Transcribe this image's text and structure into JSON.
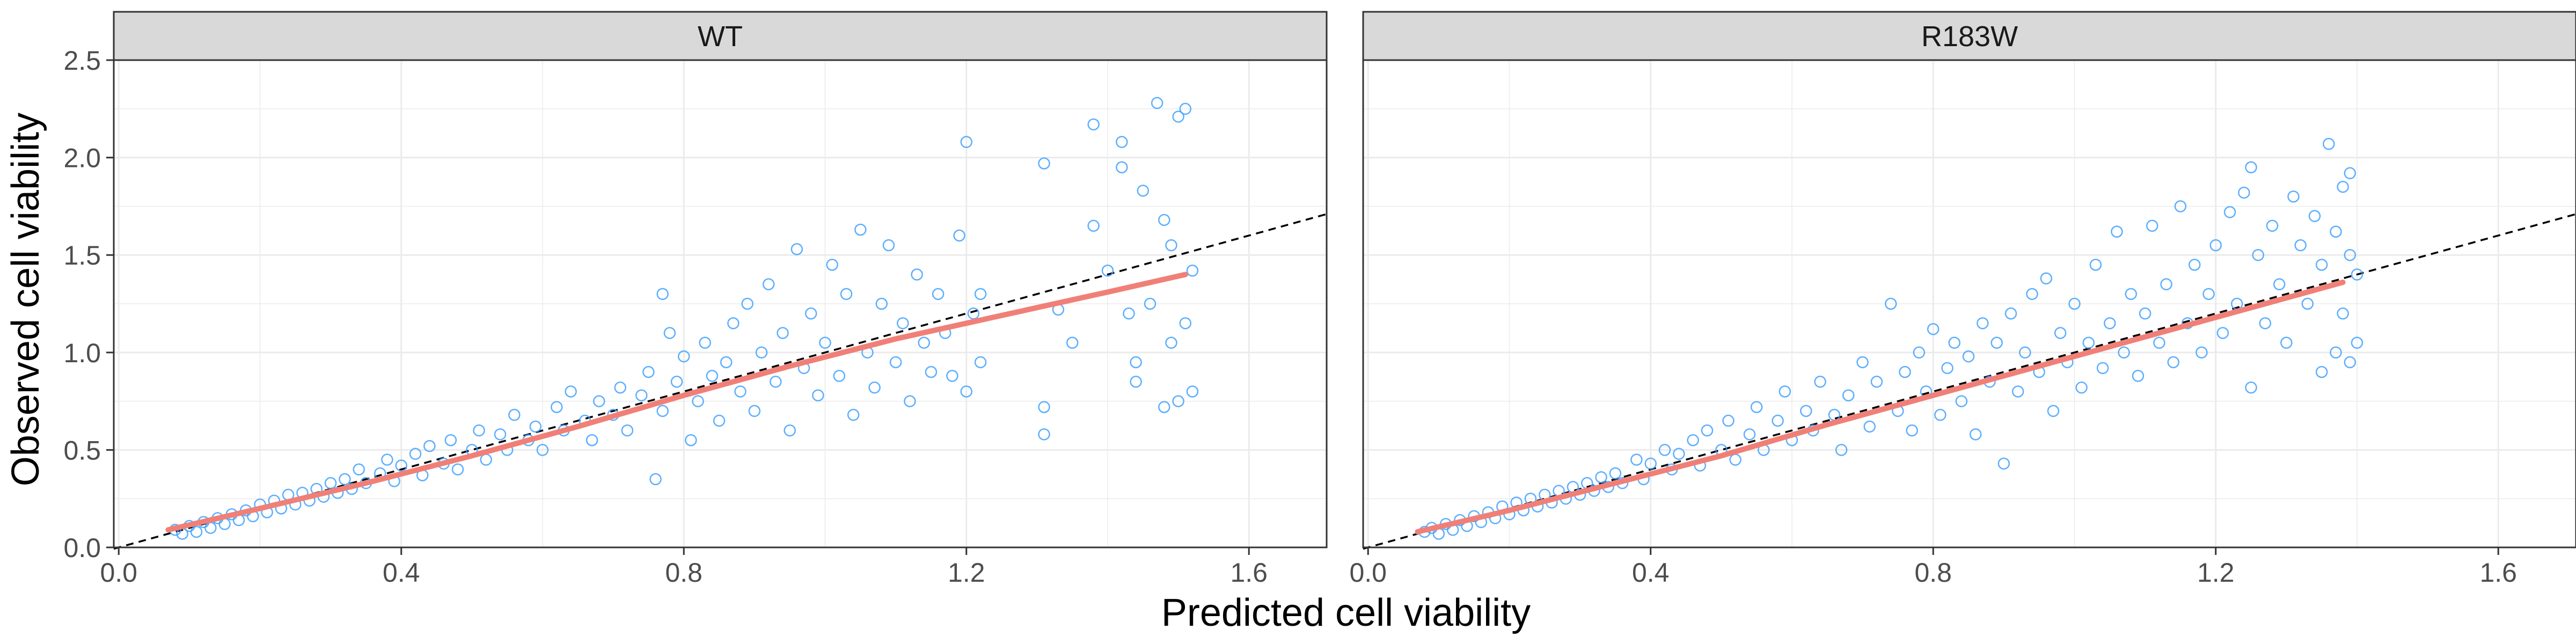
{
  "chart_data": {
    "type": "scatter",
    "xlabel": "Predicted cell viability",
    "ylabel": "Observed cell viability",
    "xlim": [
      -0.007,
      1.71
    ],
    "ylim": [
      -0.0,
      2.5
    ],
    "xticks": [
      0.0,
      0.4,
      0.8,
      1.2,
      1.6
    ],
    "xtick_labels": [
      "0.0",
      "0.4",
      "0.8",
      "1.2",
      "1.6"
    ],
    "yticks": [
      0.0,
      0.5,
      1.0,
      1.5,
      2.0,
      2.5
    ],
    "ytick_labels": [
      "0.0",
      "0.5",
      "1.0",
      "1.5",
      "2.0",
      "2.5"
    ],
    "grid": true,
    "reference_line": {
      "slope": 1,
      "intercept": 0,
      "style": "dashed",
      "color": "#000000"
    },
    "point_color": "#3fa1ff",
    "smooth_color": "#f08077",
    "panels": [
      {
        "label": "WT",
        "smooth": {
          "x": [
            0.07,
            0.2,
            0.35,
            0.5,
            0.65,
            0.8,
            0.95,
            1.1,
            1.25,
            1.4,
            1.51
          ],
          "y": [
            0.09,
            0.2,
            0.33,
            0.47,
            0.62,
            0.78,
            0.93,
            1.07,
            1.19,
            1.31,
            1.4
          ]
        },
        "points": [
          [
            0.08,
            0.09
          ],
          [
            0.09,
            0.07
          ],
          [
            0.1,
            0.11
          ],
          [
            0.11,
            0.08
          ],
          [
            0.12,
            0.13
          ],
          [
            0.13,
            0.1
          ],
          [
            0.14,
            0.15
          ],
          [
            0.15,
            0.12
          ],
          [
            0.16,
            0.17
          ],
          [
            0.17,
            0.14
          ],
          [
            0.18,
            0.19
          ],
          [
            0.19,
            0.16
          ],
          [
            0.2,
            0.22
          ],
          [
            0.21,
            0.18
          ],
          [
            0.22,
            0.24
          ],
          [
            0.23,
            0.2
          ],
          [
            0.24,
            0.27
          ],
          [
            0.25,
            0.22
          ],
          [
            0.26,
            0.28
          ],
          [
            0.27,
            0.24
          ],
          [
            0.28,
            0.3
          ],
          [
            0.29,
            0.26
          ],
          [
            0.3,
            0.33
          ],
          [
            0.31,
            0.28
          ],
          [
            0.32,
            0.35
          ],
          [
            0.33,
            0.3
          ],
          [
            0.34,
            0.4
          ],
          [
            0.35,
            0.33
          ],
          [
            0.37,
            0.38
          ],
          [
            0.38,
            0.45
          ],
          [
            0.39,
            0.34
          ],
          [
            0.4,
            0.42
          ],
          [
            0.42,
            0.48
          ],
          [
            0.43,
            0.37
          ],
          [
            0.44,
            0.52
          ],
          [
            0.46,
            0.43
          ],
          [
            0.47,
            0.55
          ],
          [
            0.48,
            0.4
          ],
          [
            0.5,
            0.5
          ],
          [
            0.51,
            0.6
          ],
          [
            0.52,
            0.45
          ],
          [
            0.54,
            0.58
          ],
          [
            0.55,
            0.5
          ],
          [
            0.56,
            0.68
          ],
          [
            0.58,
            0.55
          ],
          [
            0.59,
            0.62
          ],
          [
            0.6,
            0.5
          ],
          [
            0.62,
            0.72
          ],
          [
            0.63,
            0.6
          ],
          [
            0.64,
            0.8
          ],
          [
            0.66,
            0.65
          ],
          [
            0.67,
            0.55
          ],
          [
            0.68,
            0.75
          ],
          [
            0.7,
            0.68
          ],
          [
            0.71,
            0.82
          ],
          [
            0.72,
            0.6
          ],
          [
            0.74,
            0.78
          ],
          [
            0.75,
            0.9
          ],
          [
            0.76,
            0.35
          ],
          [
            0.77,
            0.7
          ],
          [
            0.77,
            1.3
          ],
          [
            0.78,
            1.1
          ],
          [
            0.79,
            0.85
          ],
          [
            0.8,
            0.98
          ],
          [
            0.81,
            0.55
          ],
          [
            0.82,
            0.75
          ],
          [
            0.83,
            1.05
          ],
          [
            0.84,
            0.88
          ],
          [
            0.85,
            0.65
          ],
          [
            0.86,
            0.95
          ],
          [
            0.87,
            1.15
          ],
          [
            0.88,
            0.8
          ],
          [
            0.89,
            1.25
          ],
          [
            0.9,
            0.7
          ],
          [
            0.91,
            1.0
          ],
          [
            0.92,
            1.35
          ],
          [
            0.93,
            0.85
          ],
          [
            0.94,
            1.1
          ],
          [
            0.95,
            0.6
          ],
          [
            0.96,
            1.53
          ],
          [
            0.97,
            0.92
          ],
          [
            0.98,
            1.2
          ],
          [
            0.99,
            0.78
          ],
          [
            1.0,
            1.05
          ],
          [
            1.01,
            1.45
          ],
          [
            1.02,
            0.88
          ],
          [
            1.03,
            1.3
          ],
          [
            1.04,
            0.68
          ],
          [
            1.05,
            1.63
          ],
          [
            1.06,
            1.0
          ],
          [
            1.07,
            0.82
          ],
          [
            1.08,
            1.25
          ],
          [
            1.09,
            1.55
          ],
          [
            1.1,
            0.95
          ],
          [
            1.11,
            1.15
          ],
          [
            1.12,
            0.75
          ],
          [
            1.13,
            1.4
          ],
          [
            1.14,
            1.05
          ],
          [
            1.15,
            0.9
          ],
          [
            1.16,
            1.3
          ],
          [
            1.17,
            1.1
          ],
          [
            1.18,
            0.88
          ],
          [
            1.19,
            1.6
          ],
          [
            1.2,
            2.08
          ],
          [
            1.2,
            0.8
          ],
          [
            1.21,
            1.2
          ],
          [
            1.22,
            0.95
          ],
          [
            1.22,
            1.3
          ],
          [
            1.31,
            1.97
          ],
          [
            1.31,
            0.72
          ],
          [
            1.31,
            0.58
          ],
          [
            1.33,
            1.22
          ],
          [
            1.35,
            1.05
          ],
          [
            1.38,
            2.17
          ],
          [
            1.38,
            1.65
          ],
          [
            1.4,
            1.42
          ],
          [
            1.42,
            2.08
          ],
          [
            1.42,
            1.95
          ],
          [
            1.43,
            1.2
          ],
          [
            1.44,
            0.95
          ],
          [
            1.44,
            0.85
          ],
          [
            1.45,
            1.83
          ],
          [
            1.46,
            1.25
          ],
          [
            1.47,
            2.28
          ],
          [
            1.48,
            1.68
          ],
          [
            1.48,
            0.72
          ],
          [
            1.49,
            1.05
          ],
          [
            1.49,
            1.55
          ],
          [
            1.5,
            2.21
          ],
          [
            1.5,
            0.75
          ],
          [
            1.51,
            2.25
          ],
          [
            1.51,
            1.15
          ],
          [
            1.52,
            1.42
          ],
          [
            1.52,
            0.8
          ]
        ]
      },
      {
        "label": "R183W",
        "smooth": {
          "x": [
            0.07,
            0.2,
            0.35,
            0.5,
            0.65,
            0.8,
            0.95,
            1.1,
            1.25,
            1.38
          ],
          "y": [
            0.08,
            0.19,
            0.33,
            0.47,
            0.63,
            0.78,
            0.93,
            1.08,
            1.23,
            1.36
          ]
        },
        "points": [
          [
            0.08,
            0.08
          ],
          [
            0.09,
            0.1
          ],
          [
            0.1,
            0.07
          ],
          [
            0.11,
            0.12
          ],
          [
            0.12,
            0.09
          ],
          [
            0.13,
            0.14
          ],
          [
            0.14,
            0.11
          ],
          [
            0.15,
            0.16
          ],
          [
            0.16,
            0.13
          ],
          [
            0.17,
            0.18
          ],
          [
            0.18,
            0.15
          ],
          [
            0.19,
            0.21
          ],
          [
            0.2,
            0.17
          ],
          [
            0.21,
            0.23
          ],
          [
            0.22,
            0.19
          ],
          [
            0.23,
            0.25
          ],
          [
            0.24,
            0.21
          ],
          [
            0.25,
            0.27
          ],
          [
            0.26,
            0.23
          ],
          [
            0.27,
            0.29
          ],
          [
            0.28,
            0.25
          ],
          [
            0.29,
            0.31
          ],
          [
            0.3,
            0.27
          ],
          [
            0.31,
            0.33
          ],
          [
            0.32,
            0.29
          ],
          [
            0.33,
            0.36
          ],
          [
            0.34,
            0.31
          ],
          [
            0.35,
            0.38
          ],
          [
            0.36,
            0.33
          ],
          [
            0.38,
            0.45
          ],
          [
            0.39,
            0.35
          ],
          [
            0.4,
            0.43
          ],
          [
            0.42,
            0.5
          ],
          [
            0.43,
            0.4
          ],
          [
            0.44,
            0.48
          ],
          [
            0.46,
            0.55
          ],
          [
            0.47,
            0.42
          ],
          [
            0.48,
            0.6
          ],
          [
            0.5,
            0.5
          ],
          [
            0.51,
            0.65
          ],
          [
            0.52,
            0.45
          ],
          [
            0.54,
            0.58
          ],
          [
            0.55,
            0.72
          ],
          [
            0.56,
            0.5
          ],
          [
            0.58,
            0.65
          ],
          [
            0.59,
            0.8
          ],
          [
            0.6,
            0.55
          ],
          [
            0.62,
            0.7
          ],
          [
            0.63,
            0.6
          ],
          [
            0.64,
            0.85
          ],
          [
            0.66,
            0.68
          ],
          [
            0.67,
            0.5
          ],
          [
            0.68,
            0.78
          ],
          [
            0.7,
            0.95
          ],
          [
            0.71,
            0.62
          ],
          [
            0.72,
            0.85
          ],
          [
            0.74,
            1.25
          ],
          [
            0.75,
            0.7
          ],
          [
            0.76,
            0.9
          ],
          [
            0.77,
            0.6
          ],
          [
            0.78,
            1.0
          ],
          [
            0.79,
            0.8
          ],
          [
            0.8,
            1.12
          ],
          [
            0.81,
            0.68
          ],
          [
            0.82,
            0.92
          ],
          [
            0.83,
            1.05
          ],
          [
            0.84,
            0.75
          ],
          [
            0.85,
            0.98
          ],
          [
            0.86,
            0.58
          ],
          [
            0.87,
            1.15
          ],
          [
            0.88,
            0.85
          ],
          [
            0.89,
            1.05
          ],
          [
            0.9,
            0.43
          ],
          [
            0.91,
            1.2
          ],
          [
            0.92,
            0.8
          ],
          [
            0.93,
            1.0
          ],
          [
            0.94,
            1.3
          ],
          [
            0.95,
            0.9
          ],
          [
            0.96,
            1.38
          ],
          [
            0.97,
            0.7
          ],
          [
            0.98,
            1.1
          ],
          [
            0.99,
            0.95
          ],
          [
            1.0,
            1.25
          ],
          [
            1.01,
            0.82
          ],
          [
            1.02,
            1.05
          ],
          [
            1.03,
            1.45
          ],
          [
            1.04,
            0.92
          ],
          [
            1.05,
            1.15
          ],
          [
            1.06,
            1.62
          ],
          [
            1.07,
            1.0
          ],
          [
            1.08,
            1.3
          ],
          [
            1.09,
            0.88
          ],
          [
            1.1,
            1.2
          ],
          [
            1.11,
            1.65
          ],
          [
            1.12,
            1.05
          ],
          [
            1.13,
            1.35
          ],
          [
            1.14,
            0.95
          ],
          [
            1.15,
            1.75
          ],
          [
            1.16,
            1.15
          ],
          [
            1.17,
            1.45
          ],
          [
            1.18,
            1.0
          ],
          [
            1.19,
            1.3
          ],
          [
            1.2,
            1.55
          ],
          [
            1.21,
            1.1
          ],
          [
            1.22,
            1.72
          ],
          [
            1.23,
            1.25
          ],
          [
            1.24,
            1.82
          ],
          [
            1.25,
            1.95
          ],
          [
            1.25,
            0.82
          ],
          [
            1.26,
            1.5
          ],
          [
            1.27,
            1.15
          ],
          [
            1.28,
            1.65
          ],
          [
            1.29,
            1.35
          ],
          [
            1.3,
            1.05
          ],
          [
            1.31,
            1.8
          ],
          [
            1.32,
            1.55
          ],
          [
            1.33,
            1.25
          ],
          [
            1.34,
            1.7
          ],
          [
            1.35,
            0.9
          ],
          [
            1.35,
            1.45
          ],
          [
            1.36,
            2.07
          ],
          [
            1.37,
            1.62
          ],
          [
            1.37,
            1.0
          ],
          [
            1.38,
            1.85
          ],
          [
            1.38,
            1.2
          ],
          [
            1.39,
            0.95
          ],
          [
            1.39,
            1.5
          ],
          [
            1.4,
            1.4
          ],
          [
            1.4,
            1.05
          ],
          [
            1.39,
            1.92
          ]
        ]
      }
    ]
  }
}
